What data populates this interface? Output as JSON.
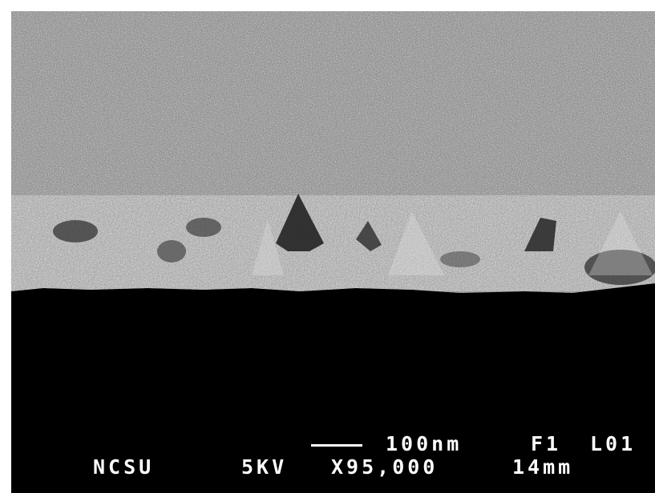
{
  "micrograph": {
    "scale_bar_label": "100nm",
    "frame_id": "F1",
    "line_id": "L01",
    "institution": "NCSU",
    "accelerating_voltage": "5KV",
    "magnification": "X95,000",
    "working_distance": "14mm"
  },
  "colors": {
    "background": "#ffffff",
    "sample_top": "#8a8a8a",
    "substrate": "#000000",
    "overlay_text": "#ffffff"
  }
}
